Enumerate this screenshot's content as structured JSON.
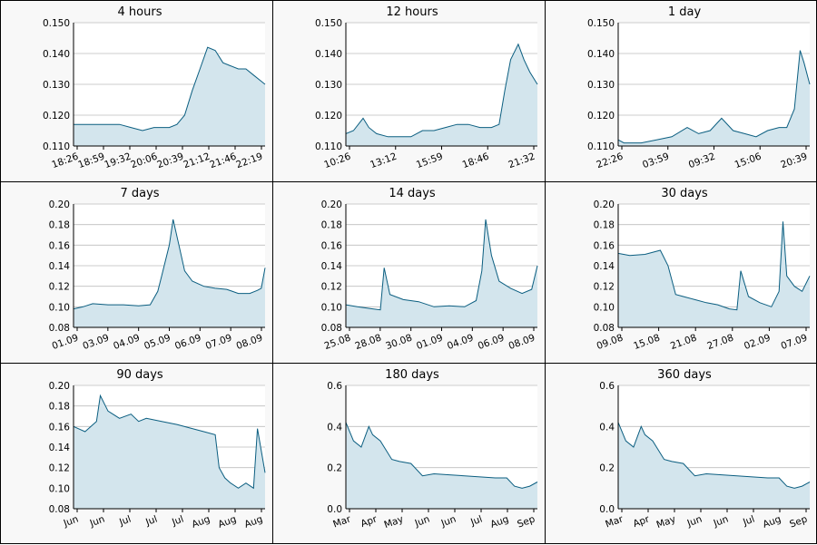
{
  "colors": {
    "line": "#0b5e80",
    "fill": "#d3e5ed",
    "grid": "#bdbdbd",
    "border": "#000000",
    "panel_bg": "#f8f8f8"
  },
  "chart_data": [
    {
      "type": "area",
      "title": "4 hours",
      "ylim": [
        0.11,
        0.15
      ],
      "yticks": [
        "0.110",
        "0.120",
        "0.130",
        "0.140",
        "0.150"
      ],
      "xticks": [
        "18:26",
        "18:59",
        "19:32",
        "20:06",
        "20:39",
        "21:12",
        "21:46",
        "22:19"
      ],
      "grid": true,
      "x": [
        0,
        0.08,
        0.16,
        0.24,
        0.3,
        0.36,
        0.42,
        0.46,
        0.5,
        0.54,
        0.58,
        0.62,
        0.66,
        0.7,
        0.74,
        0.78,
        0.82,
        0.86,
        0.9,
        0.94,
        0.98,
        1.0
      ],
      "y": [
        0.117,
        0.117,
        0.117,
        0.117,
        0.116,
        0.115,
        0.116,
        0.116,
        0.116,
        0.117,
        0.12,
        0.128,
        0.135,
        0.142,
        0.141,
        0.137,
        0.136,
        0.135,
        0.135,
        0.133,
        0.131,
        0.13
      ]
    },
    {
      "type": "area",
      "title": "12 hours",
      "ylim": [
        0.11,
        0.15
      ],
      "yticks": [
        "0.110",
        "0.120",
        "0.130",
        "0.140",
        "0.150"
      ],
      "xticks": [
        "10:26",
        "13:12",
        "15:59",
        "18:46",
        "21:32"
      ],
      "grid": true,
      "x": [
        0,
        0.04,
        0.09,
        0.12,
        0.16,
        0.22,
        0.28,
        0.34,
        0.4,
        0.46,
        0.52,
        0.58,
        0.64,
        0.7,
        0.76,
        0.8,
        0.83,
        0.86,
        0.9,
        0.93,
        0.96,
        1.0
      ],
      "y": [
        0.114,
        0.115,
        0.119,
        0.116,
        0.114,
        0.113,
        0.113,
        0.113,
        0.115,
        0.115,
        0.116,
        0.117,
        0.117,
        0.116,
        0.116,
        0.117,
        0.128,
        0.138,
        0.143,
        0.138,
        0.134,
        0.13
      ]
    },
    {
      "type": "area",
      "title": "1 day",
      "ylim": [
        0.11,
        0.15
      ],
      "yticks": [
        "0.110",
        "0.120",
        "0.130",
        "0.140",
        "0.150"
      ],
      "xticks": [
        "22:26",
        "03:59",
        "09:32",
        "15:06",
        "20:39"
      ],
      "grid": true,
      "x": [
        0,
        0.03,
        0.06,
        0.12,
        0.2,
        0.28,
        0.36,
        0.42,
        0.48,
        0.54,
        0.6,
        0.66,
        0.72,
        0.78,
        0.84,
        0.88,
        0.92,
        0.95,
        0.97,
        1.0
      ],
      "y": [
        0.112,
        0.111,
        0.111,
        0.111,
        0.112,
        0.113,
        0.116,
        0.114,
        0.115,
        0.119,
        0.115,
        0.114,
        0.113,
        0.115,
        0.116,
        0.116,
        0.122,
        0.141,
        0.137,
        0.13
      ]
    },
    {
      "type": "area",
      "title": "7 days",
      "ylim": [
        0.08,
        0.2
      ],
      "yticks": [
        "0.08",
        "0.10",
        "0.12",
        "0.14",
        "0.16",
        "0.18",
        "0.20"
      ],
      "xticks": [
        "01.09",
        "03.09",
        "04.09",
        "05.09",
        "06.09",
        "07.09",
        "08.09"
      ],
      "grid": true,
      "x": [
        0,
        0.05,
        0.1,
        0.18,
        0.26,
        0.34,
        0.4,
        0.44,
        0.46,
        0.5,
        0.52,
        0.55,
        0.58,
        0.62,
        0.68,
        0.74,
        0.8,
        0.86,
        0.92,
        0.96,
        0.98,
        1.0
      ],
      "y": [
        0.098,
        0.1,
        0.103,
        0.102,
        0.102,
        0.101,
        0.102,
        0.115,
        0.13,
        0.16,
        0.185,
        0.16,
        0.135,
        0.125,
        0.12,
        0.118,
        0.117,
        0.113,
        0.113,
        0.116,
        0.118,
        0.138
      ]
    },
    {
      "type": "area",
      "title": "14 days",
      "ylim": [
        0.08,
        0.2
      ],
      "yticks": [
        "0.08",
        "0.10",
        "0.12",
        "0.14",
        "0.16",
        "0.18",
        "0.20"
      ],
      "xticks": [
        "25.08",
        "28.08",
        "30.08",
        "01.09",
        "04.09",
        "06.09",
        "08.09"
      ],
      "grid": true,
      "x": [
        0,
        0.06,
        0.14,
        0.18,
        0.2,
        0.23,
        0.3,
        0.38,
        0.46,
        0.54,
        0.62,
        0.68,
        0.71,
        0.73,
        0.76,
        0.8,
        0.86,
        0.92,
        0.97,
        1.0
      ],
      "y": [
        0.102,
        0.1,
        0.098,
        0.097,
        0.138,
        0.112,
        0.107,
        0.105,
        0.1,
        0.101,
        0.1,
        0.106,
        0.135,
        0.185,
        0.15,
        0.125,
        0.118,
        0.113,
        0.117,
        0.14
      ]
    },
    {
      "type": "area",
      "title": "30 days",
      "ylim": [
        0.08,
        0.2
      ],
      "yticks": [
        "0.08",
        "0.10",
        "0.12",
        "0.14",
        "0.16",
        "0.18",
        "0.20"
      ],
      "xticks": [
        "09.08",
        "15.08",
        "21.08",
        "27.08",
        "02.09",
        "07.09"
      ],
      "grid": true,
      "x": [
        0,
        0.06,
        0.14,
        0.22,
        0.26,
        0.3,
        0.34,
        0.4,
        0.46,
        0.52,
        0.58,
        0.62,
        0.64,
        0.68,
        0.74,
        0.8,
        0.84,
        0.86,
        0.88,
        0.92,
        0.96,
        1.0
      ],
      "y": [
        0.152,
        0.15,
        0.151,
        0.155,
        0.14,
        0.112,
        0.11,
        0.107,
        0.104,
        0.102,
        0.098,
        0.097,
        0.135,
        0.11,
        0.104,
        0.1,
        0.115,
        0.183,
        0.13,
        0.12,
        0.115,
        0.13
      ]
    },
    {
      "type": "area",
      "title": "90 days",
      "ylim": [
        0.08,
        0.2
      ],
      "yticks": [
        "0.08",
        "0.10",
        "0.12",
        "0.14",
        "0.16",
        "0.18",
        "0.20"
      ],
      "xticks": [
        "Jun",
        "Jun",
        "Jul",
        "Jul",
        "Jul",
        "Aug",
        "Aug",
        "Aug"
      ],
      "grid": true,
      "x": [
        0,
        0.06,
        0.12,
        0.14,
        0.18,
        0.24,
        0.3,
        0.34,
        0.38,
        0.46,
        0.54,
        0.62,
        0.68,
        0.74,
        0.76,
        0.79,
        0.82,
        0.86,
        0.9,
        0.94,
        0.96,
        1.0
      ],
      "y": [
        0.16,
        0.155,
        0.165,
        0.19,
        0.175,
        0.168,
        0.172,
        0.165,
        0.168,
        0.165,
        0.162,
        0.158,
        0.155,
        0.152,
        0.12,
        0.11,
        0.105,
        0.1,
        0.105,
        0.1,
        0.158,
        0.115
      ]
    },
    {
      "type": "area",
      "title": "180 days",
      "ylim": [
        0.0,
        0.6
      ],
      "yticks": [
        "0.0",
        "0.2",
        "0.4",
        "0.6"
      ],
      "xticks": [
        "Mar",
        "Apr",
        "May",
        "Jun",
        "Jun",
        "Jul",
        "Aug",
        "Sep"
      ],
      "grid": true,
      "x": [
        0,
        0.04,
        0.08,
        0.12,
        0.14,
        0.18,
        0.24,
        0.28,
        0.34,
        0.4,
        0.46,
        0.54,
        0.62,
        0.7,
        0.78,
        0.84,
        0.88,
        0.92,
        0.96,
        1.0
      ],
      "y": [
        0.42,
        0.33,
        0.3,
        0.4,
        0.36,
        0.33,
        0.24,
        0.23,
        0.22,
        0.16,
        0.17,
        0.165,
        0.16,
        0.155,
        0.15,
        0.15,
        0.11,
        0.1,
        0.11,
        0.13
      ]
    },
    {
      "type": "area",
      "title": "360 days",
      "ylim": [
        0.0,
        0.6
      ],
      "yticks": [
        "0.0",
        "0.2",
        "0.4",
        "0.6"
      ],
      "xticks": [
        "Mar",
        "Apr",
        "May",
        "Jun",
        "Jun",
        "Jul",
        "Aug",
        "Sep"
      ],
      "grid": true,
      "x": [
        0,
        0.04,
        0.08,
        0.12,
        0.14,
        0.18,
        0.24,
        0.28,
        0.34,
        0.4,
        0.46,
        0.54,
        0.62,
        0.7,
        0.78,
        0.84,
        0.88,
        0.92,
        0.96,
        1.0
      ],
      "y": [
        0.42,
        0.33,
        0.3,
        0.4,
        0.36,
        0.33,
        0.24,
        0.23,
        0.22,
        0.16,
        0.17,
        0.165,
        0.16,
        0.155,
        0.15,
        0.15,
        0.11,
        0.1,
        0.11,
        0.13
      ]
    }
  ]
}
